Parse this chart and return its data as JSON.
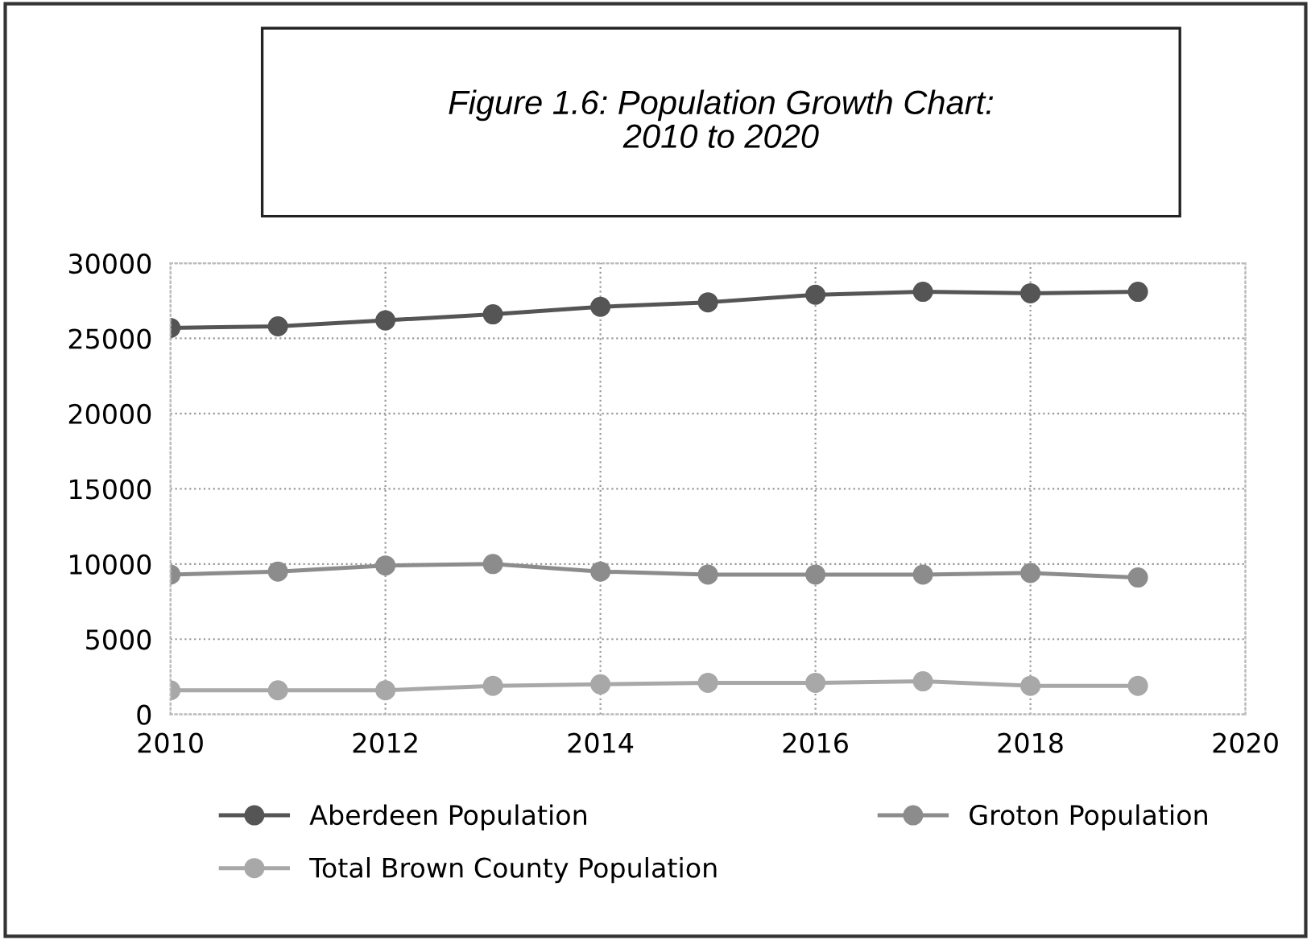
{
  "chart_data": {
    "type": "line",
    "title": "Figure 1.6: Population Growth Chart:\n2010 to 2020",
    "x": [
      2010,
      2011,
      2012,
      2013,
      2014,
      2015,
      2016,
      2017,
      2018,
      2019
    ],
    "series": [
      {
        "name": "Aberdeen Population",
        "color": "#555555",
        "values": [
          25700,
          25800,
          26200,
          26600,
          27100,
          27400,
          27900,
          28100,
          28000,
          28100
        ]
      },
      {
        "name": "Groton Population",
        "color": "#8c8c8c",
        "values": [
          9300,
          9500,
          9900,
          10000,
          9500,
          9300,
          9300,
          9300,
          9400,
          9100
        ]
      },
      {
        "name": "Total Brown County Population",
        "color": "#a8a8a8",
        "values": [
          1600,
          1600,
          1600,
          1900,
          2000,
          2100,
          2100,
          2200,
          1900,
          1900
        ]
      }
    ],
    "xlim": [
      2010,
      2020
    ],
    "xticks": [
      2010,
      2012,
      2014,
      2016,
      2018,
      2020
    ],
    "ylim": [
      0,
      30000
    ],
    "yticks": [
      0,
      5000,
      10000,
      15000,
      20000,
      25000,
      30000
    ],
    "grid": true,
    "legend": "bottom",
    "marker": "circle",
    "line_style": "solid"
  }
}
